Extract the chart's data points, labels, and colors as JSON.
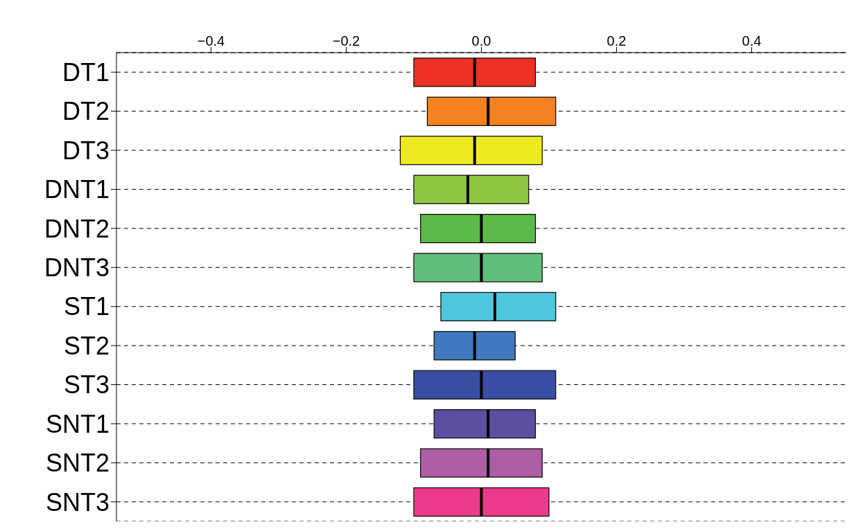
{
  "chart_data": {
    "type": "box",
    "orientation": "horizontal",
    "categories": [
      "DT1",
      "DT2",
      "DT3",
      "DNT1",
      "DNT2",
      "DNT3",
      "ST1",
      "ST2",
      "ST3",
      "SNT1",
      "SNT2",
      "SNT3"
    ],
    "boxes": [
      {
        "low": -0.1,
        "q1": -0.1,
        "median": -0.01,
        "q3": 0.08,
        "high": 0.08
      },
      {
        "low": -0.08,
        "q1": -0.08,
        "median": 0.01,
        "q3": 0.11,
        "high": 0.11
      },
      {
        "low": -0.12,
        "q1": -0.12,
        "median": -0.01,
        "q3": 0.09,
        "high": 0.09
      },
      {
        "low": -0.1,
        "q1": -0.1,
        "median": -0.02,
        "q3": 0.07,
        "high": 0.07
      },
      {
        "low": -0.09,
        "q1": -0.09,
        "median": 0.0,
        "q3": 0.08,
        "high": 0.08
      },
      {
        "low": -0.1,
        "q1": -0.1,
        "median": 0.0,
        "q3": 0.09,
        "high": 0.09
      },
      {
        "low": -0.06,
        "q1": -0.06,
        "median": 0.02,
        "q3": 0.11,
        "high": 0.11
      },
      {
        "low": -0.07,
        "q1": -0.07,
        "median": -0.01,
        "q3": 0.05,
        "high": 0.05
      },
      {
        "low": -0.1,
        "q1": -0.1,
        "median": 0.0,
        "q3": 0.11,
        "high": 0.11
      },
      {
        "low": -0.07,
        "q1": -0.07,
        "median": 0.01,
        "q3": 0.08,
        "high": 0.08
      },
      {
        "low": -0.09,
        "q1": -0.09,
        "median": 0.01,
        "q3": 0.09,
        "high": 0.09
      },
      {
        "low": -0.1,
        "q1": -0.1,
        "median": 0.0,
        "q3": 0.1,
        "high": 0.1
      }
    ],
    "colors": [
      "#ee3124",
      "#f58220",
      "#eeea21",
      "#8dc63f",
      "#5bb947",
      "#5fbf7a",
      "#4fc6dc",
      "#4178be",
      "#3a4fa3",
      "#5e4ea2",
      "#b05da8",
      "#ee3a8c"
    ],
    "xlim": [
      -0.54,
      0.54
    ],
    "xticks": [
      {
        "value": -0.4,
        "label": "−0.4"
      },
      {
        "value": -0.2,
        "label": "−0.2"
      },
      {
        "value": 0,
        "label": "0.0"
      },
      {
        "value": 0.2,
        "label": "0.2"
      },
      {
        "value": 0.4,
        "label": "0.4"
      }
    ],
    "grid": "y"
  }
}
